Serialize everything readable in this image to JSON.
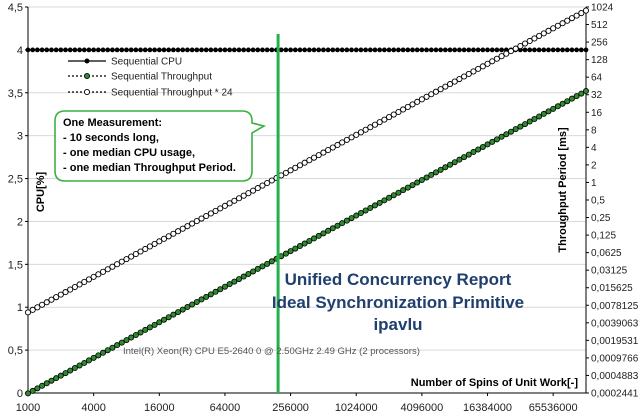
{
  "chart_data": {
    "type": "line",
    "x_scale": "log2",
    "x_tick_labels": [
      "1000",
      "4000",
      "16000",
      "64000",
      "256000",
      "1024000",
      "4096000",
      "16384000",
      "65536000"
    ],
    "x_range": [
      1000,
      131072000
    ],
    "xlabel": "Number of Spins of Unit Work[-]",
    "ylabel_left": "CPU[%]",
    "ylabel_right": "Throughput Period [ms]",
    "y_left_range": [
      0,
      4.5
    ],
    "y_left_tick_labels": [
      "0",
      "0,5",
      "1",
      "1,5",
      "2",
      "2,5",
      "3",
      "3,5",
      "4",
      "4,5"
    ],
    "y_right_scale": "log2",
    "y_right_range_exponent": [
      -12,
      10
    ],
    "y_right_tick_labels": [
      "1024",
      "512",
      "256",
      "128",
      "64",
      "32",
      "16",
      "8",
      "4",
      "2",
      "1",
      "0,5",
      "0,25",
      "0,125",
      "0,0625",
      "0,03125",
      "0,015625",
      "0,0078125",
      "0,0039063",
      "0,0019531",
      "0,0009766",
      "0,0004883",
      "0,0002441"
    ],
    "series": [
      {
        "name": "Sequential CPU",
        "axis": "left",
        "x_start": 1000,
        "x_end": 131072000,
        "y_start": 4,
        "y_end": 4,
        "color": "#000000",
        "marker": "filled-black"
      },
      {
        "name": "Sequential Throughput",
        "axis": "right",
        "x_start": 1000,
        "x_end": 131072000,
        "y_start": 0.00024,
        "y_end": 37,
        "color": "#000000",
        "marker": "green-filled"
      },
      {
        "name": "Sequential Throughput * 24",
        "axis": "right",
        "x_start": 1000,
        "x_end": 131072000,
        "y_start": 0.0059,
        "y_end": 890,
        "color": "#000000",
        "marker": "white-hollow"
      }
    ],
    "vertical_marker_x": 196608,
    "title_lines": [
      "Unified Concurrency Report",
      "Ideal Synchronization Primitive",
      "ipavlu"
    ],
    "cpu_info": "Intel(R) Xeon(R) CPU E5-2640 0 @ 2.50GHz   2.49 GHz  (2 processors)",
    "callout_lines": [
      "One Measurement:",
      "- 10 seconds long,",
      "- one median CPU usage,",
      "- one median Throughput Period."
    ],
    "legend_placement": "top-left",
    "colors": {
      "marker_line": "#22b14c",
      "green_marker": "#2e8b2e",
      "callout_border": "#3cb043"
    }
  }
}
